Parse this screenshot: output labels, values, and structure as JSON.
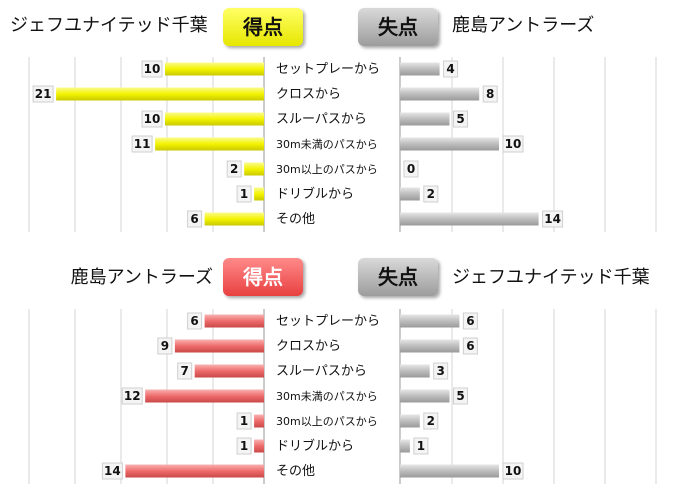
{
  "colors": {
    "yellow": "#f3f300",
    "red": "#ef6b6b",
    "gray": "#bdbdbd",
    "grid": "#d4d4d4"
  },
  "chart_data": [
    {
      "type": "bar",
      "left_team": "ジェフユナイテッド千葉",
      "right_team": "鹿島アントラーズ",
      "left_badge": "得点",
      "right_badge": "失点",
      "left_color": "yellow",
      "categories": [
        "セットプレーから",
        "クロスから",
        "スルーパスから",
        "30m未満のパスから",
        "30m以上のパスから",
        "ドリブルから",
        "その他"
      ],
      "series": [
        {
          "name": "得点",
          "values": [
            10,
            21,
            10,
            11,
            2,
            1,
            6
          ]
        },
        {
          "name": "失点",
          "values": [
            4,
            8,
            5,
            10,
            0,
            2,
            14
          ]
        }
      ]
    },
    {
      "type": "bar",
      "left_team": "鹿島アントラーズ",
      "right_team": "ジェフユナイテッド千葉",
      "left_badge": "得点",
      "right_badge": "失点",
      "left_color": "red",
      "categories": [
        "セットプレーから",
        "クロスから",
        "スルーパスから",
        "30m未満のパスから",
        "30m以上のパスから",
        "ドリブルから",
        "その他"
      ],
      "series": [
        {
          "name": "得点",
          "values": [
            6,
            9,
            7,
            12,
            1,
            1,
            14
          ]
        },
        {
          "name": "失点",
          "values": [
            6,
            6,
            3,
            5,
            2,
            1,
            10
          ]
        }
      ]
    }
  ]
}
